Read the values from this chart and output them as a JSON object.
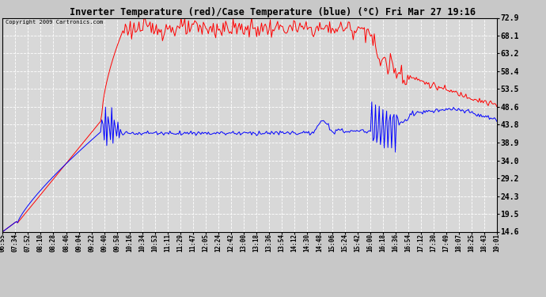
{
  "title": "Inverter Temperature (red)/Case Temperature (blue) (°C) Fri Mar 27 19:16",
  "copyright": "Copyright 2009 Cartronics.com",
  "y_ticks": [
    14.6,
    19.5,
    24.3,
    29.2,
    34.0,
    38.9,
    43.8,
    48.6,
    53.5,
    58.4,
    63.2,
    68.1,
    72.9
  ],
  "y_min": 14.6,
  "y_max": 72.9,
  "bg_color": "#c8c8c8",
  "plot_bg_color": "#d8d8d8",
  "grid_color": "#ffffff",
  "red_color": "#ff0000",
  "blue_color": "#0000ff",
  "x_labels": [
    "06:55",
    "07:34",
    "07:52",
    "08:10",
    "08:28",
    "08:46",
    "09:04",
    "09:22",
    "09:40",
    "09:58",
    "10:16",
    "10:34",
    "10:53",
    "11:11",
    "11:29",
    "11:47",
    "12:05",
    "12:24",
    "12:42",
    "13:00",
    "13:18",
    "13:36",
    "13:54",
    "14:12",
    "14:30",
    "14:48",
    "15:06",
    "15:24",
    "15:42",
    "16:00",
    "16:18",
    "16:36",
    "16:54",
    "17:12",
    "17:30",
    "17:49",
    "18:07",
    "18:25",
    "18:43",
    "19:01"
  ]
}
